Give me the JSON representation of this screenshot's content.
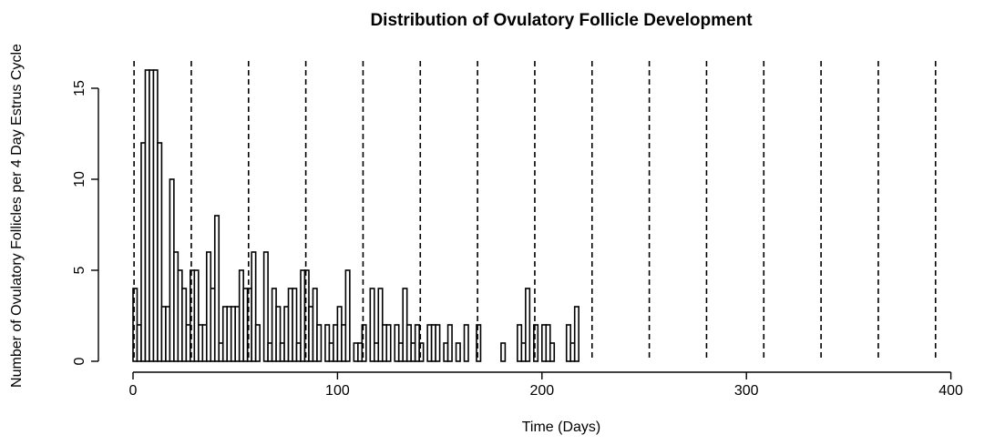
{
  "chart_data": {
    "type": "bar",
    "title": "Distribution of Ovulatory Follicle Development",
    "xlabel": "Time (Days)",
    "ylabel": "Number of Ovulatory Follicles per 4 Day Estrus Cycle",
    "bin_width": 2,
    "x_start": 0,
    "xlim": [
      0,
      420
    ],
    "ylim": [
      0,
      16
    ],
    "x_ticks": [
      0,
      100,
      200,
      300,
      400
    ],
    "y_ticks": [
      0,
      5,
      10,
      15
    ],
    "counts": [
      4,
      2,
      12,
      16,
      16,
      16,
      12,
      3,
      3,
      10,
      6,
      5,
      4,
      2,
      5,
      5,
      2,
      2,
      6,
      4,
      8,
      1,
      3,
      3,
      3,
      3,
      5,
      4,
      4,
      6,
      2,
      0,
      6,
      1,
      4,
      3,
      1,
      3,
      4,
      4,
      1,
      5,
      5,
      3,
      4,
      2,
      0,
      2,
      1,
      2,
      3,
      2,
      5,
      0,
      1,
      1,
      2,
      0,
      4,
      1,
      4,
      2,
      2,
      0,
      2,
      1,
      4,
      2,
      1,
      2,
      1,
      0,
      2,
      2,
      2,
      0,
      1,
      2,
      0,
      1,
      0,
      2,
      0,
      0,
      2,
      0,
      0,
      0,
      0,
      0,
      1,
      0,
      0,
      0,
      2,
      1,
      4,
      0,
      2,
      0,
      2,
      2,
      1,
      0,
      0,
      0,
      2,
      1,
      3
    ],
    "vlines": [
      0.5,
      28.5,
      56.5,
      84.5,
      112.5,
      140.5,
      168.5,
      196.5,
      224.5,
      252.5,
      280.5,
      308.5,
      336.5,
      364.5,
      392.5
    ],
    "grid": false,
    "legend": "none"
  }
}
